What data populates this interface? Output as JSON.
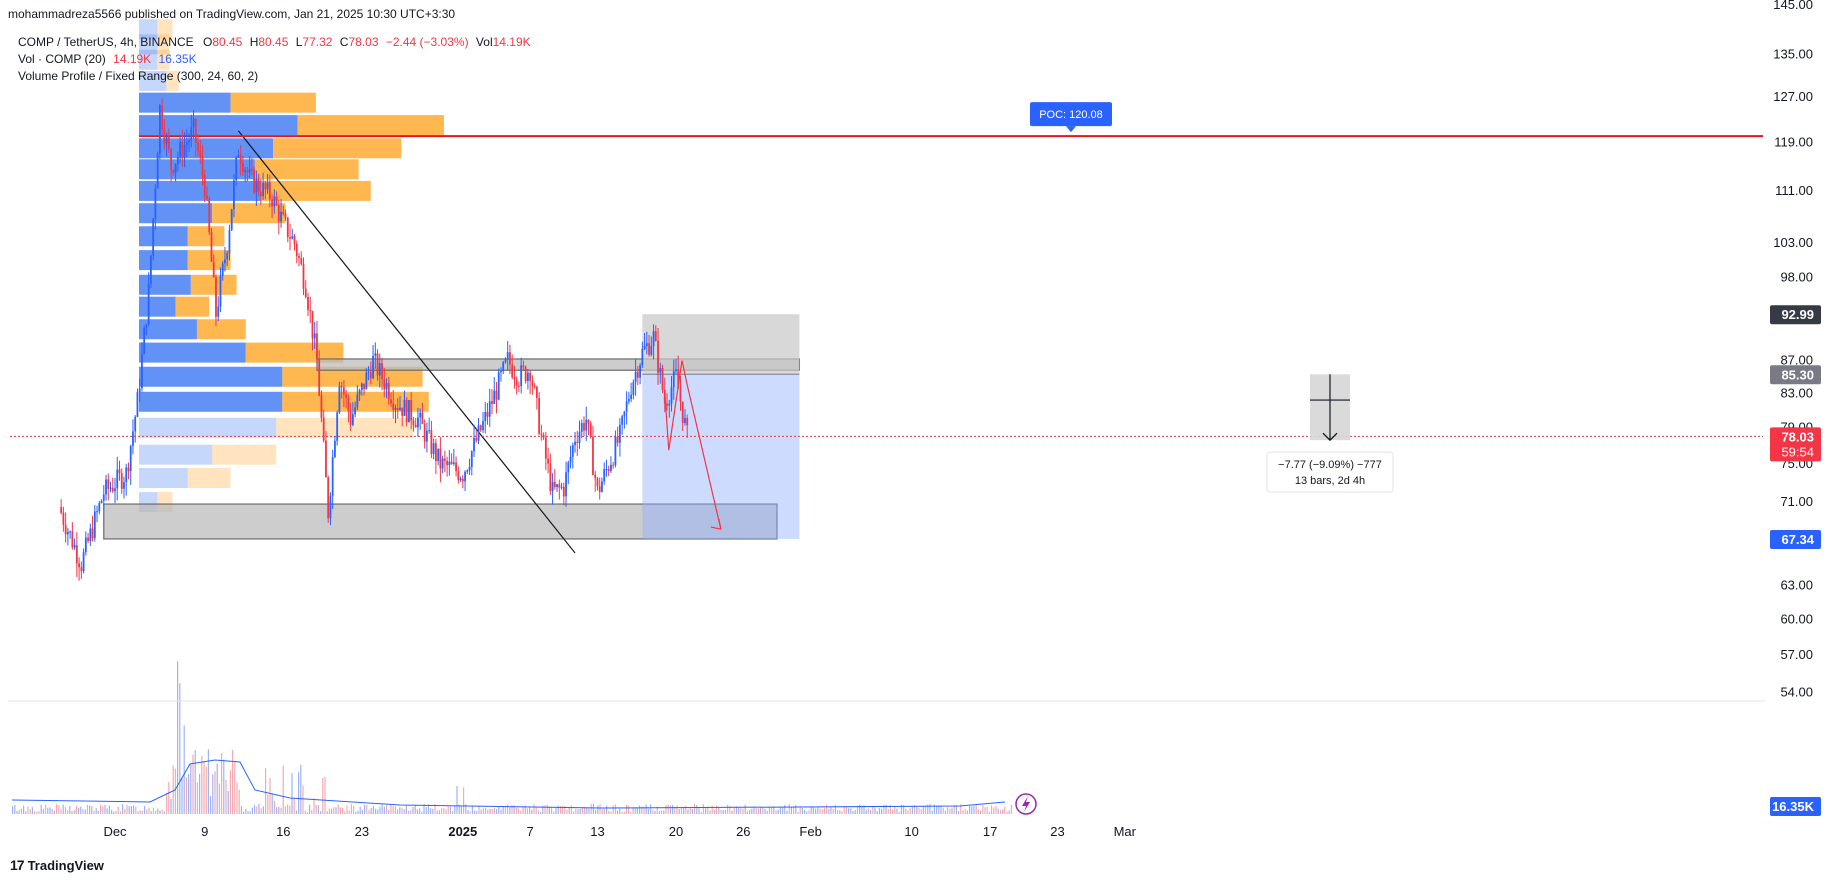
{
  "header": {
    "published": "mohammadreza5566 published on TradingView.com, Jan 21, 2025 10:30 UTC+3:30"
  },
  "legend": {
    "symbol": "COMP / TetherUS, 4h, BINANCE",
    "o_label": "O",
    "o": "80.45",
    "h_label": "H",
    "h": "80.45",
    "l_label": "L",
    "l": "77.32",
    "c_label": "C",
    "c": "78.03",
    "change": "−2.44 (−3.03%)",
    "vol_label": "Vol",
    "vol": "14.19K",
    "volume_indicator": "Vol · COMP (20)",
    "vol_val1": "14.19K",
    "vol_val2": "16.35K",
    "volume_profile": "Volume Profile / Fixed Range (300, 24, 60, 2)"
  },
  "brand": {
    "name": "TradingView",
    "logo": "17"
  },
  "colors": {
    "up": "#2962ff",
    "down": "#f23645",
    "poc": "#e3161e",
    "profile_up": "#5b8cf5",
    "profile_down": "#ffb347",
    "zone": "#b8b8b8",
    "projection": "#8fb0ff"
  },
  "chart_data": {
    "type": "candlestick",
    "timeframe": "4h",
    "y_axis_ticks": [
      "145.00",
      "135.00",
      "127.00",
      "119.00",
      "111.00",
      "103.00",
      "98.00",
      "92.99",
      "87.00",
      "85.30",
      "83.00",
      "79.00",
      "78.03",
      "75.00",
      "71.00",
      "67.34",
      "63.00",
      "60.00",
      "57.00",
      "54.00"
    ],
    "y_axis_scale": "log",
    "x_axis_ticks": [
      "Dec",
      "9",
      "16",
      "23",
      "2025",
      "7",
      "13",
      "20",
      "26",
      "Feb",
      "10",
      "17",
      "23",
      "Mar"
    ],
    "price_labels": [
      {
        "label": "92.99",
        "value": 92.99
      },
      {
        "label": "85.30",
        "value": 85.3
      },
      {
        "label": "78.03",
        "value": 78.03,
        "countdown": "59:54"
      },
      {
        "label": "67.34",
        "value": 67.34
      },
      {
        "label": "16.35K",
        "value": "volume"
      }
    ],
    "poc": {
      "label": "POC: 120.08",
      "value": 120.08
    },
    "measure": {
      "line1": "−7.77 (−9.09%) −777",
      "line2": "13 bars, 2d 4h"
    },
    "price_path": [
      {
        "date": "2024-11-26",
        "price": 70.5
      },
      {
        "date": "2024-11-28",
        "price": 65.0
      },
      {
        "date": "2024-11-30",
        "price": 72.0
      },
      {
        "date": "2024-12-02",
        "price": 74.0
      },
      {
        "date": "2024-12-03",
        "price": 82.0
      },
      {
        "date": "2024-12-04",
        "price": 96.0
      },
      {
        "date": "2024-12-05",
        "price": 125.0
      },
      {
        "date": "2024-12-06",
        "price": 115.0
      },
      {
        "date": "2024-12-07",
        "price": 118.0
      },
      {
        "date": "2024-12-08",
        "price": 121.0
      },
      {
        "date": "2024-12-09",
        "price": 112.0
      },
      {
        "date": "2024-12-10",
        "price": 93.0
      },
      {
        "date": "2024-12-11",
        "price": 103.0
      },
      {
        "date": "2024-12-12",
        "price": 118.0
      },
      {
        "date": "2024-12-13",
        "price": 113.0
      },
      {
        "date": "2024-12-15",
        "price": 110.0
      },
      {
        "date": "2024-12-16",
        "price": 106.0
      },
      {
        "date": "2024-12-17",
        "price": 103.0
      },
      {
        "date": "2024-12-18",
        "price": 97.0
      },
      {
        "date": "2024-12-19",
        "price": 87.0
      },
      {
        "date": "2024-12-20",
        "price": 70.0
      },
      {
        "date": "2024-12-21",
        "price": 85.0
      },
      {
        "date": "2024-12-22",
        "price": 80.0
      },
      {
        "date": "2024-12-24",
        "price": 87.0
      },
      {
        "date": "2024-12-26",
        "price": 82.0
      },
      {
        "date": "2024-12-28",
        "price": 80.0
      },
      {
        "date": "2024-12-30",
        "price": 75.0
      },
      {
        "date": "2025-01-01",
        "price": 74.0
      },
      {
        "date": "2025-01-03",
        "price": 80.0
      },
      {
        "date": "2025-01-05",
        "price": 87.0
      },
      {
        "date": "2025-01-06",
        "price": 85.0
      },
      {
        "date": "2025-01-07",
        "price": 86.0
      },
      {
        "date": "2025-01-08",
        "price": 78.0
      },
      {
        "date": "2025-01-09",
        "price": 72.0
      },
      {
        "date": "2025-01-10",
        "price": 72.5
      },
      {
        "date": "2025-01-11",
        "price": 78.0
      },
      {
        "date": "2025-01-12",
        "price": 80.0
      },
      {
        "date": "2025-01-13",
        "price": 72.0
      },
      {
        "date": "2025-01-15",
        "price": 78.0
      },
      {
        "date": "2025-01-16",
        "price": 84.0
      },
      {
        "date": "2025-01-17",
        "price": 88.0
      },
      {
        "date": "2025-01-18",
        "price": 90.0
      },
      {
        "date": "2025-01-19",
        "price": 82.0
      },
      {
        "date": "2025-01-20",
        "price": 85.0
      },
      {
        "date": "2025-01-21",
        "price": 78.03
      }
    ],
    "volume_profile_rows": [
      {
        "price": 140.0,
        "up": 6,
        "down": 5
      },
      {
        "price": 137.0,
        "up": 6,
        "down": 4
      },
      {
        "price": 134.0,
        "up": 6,
        "down": 4
      },
      {
        "price": 130.0,
        "up": 9,
        "down": 4
      },
      {
        "price": 126.0,
        "up": 30,
        "down": 28
      },
      {
        "price": 122.0,
        "up": 52,
        "down": 48
      },
      {
        "price": 118.0,
        "up": 44,
        "down": 42
      },
      {
        "price": 114.5,
        "up": 38,
        "down": 34
      },
      {
        "price": 111.0,
        "up": 40,
        "down": 36
      },
      {
        "price": 107.5,
        "up": 24,
        "down": 24
      },
      {
        "price": 104.0,
        "up": 16,
        "down": 12
      },
      {
        "price": 100.5,
        "up": 16,
        "down": 14
      },
      {
        "price": 97.0,
        "up": 17,
        "down": 15
      },
      {
        "price": 94.0,
        "up": 12,
        "down": 11
      },
      {
        "price": 91.0,
        "up": 19,
        "down": 16
      },
      {
        "price": 88.0,
        "up": 35,
        "down": 32
      },
      {
        "price": 85.0,
        "up": 47,
        "down": 46
      },
      {
        "price": 82.0,
        "up": 47,
        "down": 48
      },
      {
        "price": 79.0,
        "up": 45,
        "down": 45
      },
      {
        "price": 76.0,
        "up": 24,
        "down": 21
      },
      {
        "price": 73.5,
        "up": 16,
        "down": 14
      },
      {
        "price": 71.0,
        "up": 6,
        "down": 5
      }
    ],
    "zones": [
      {
        "name": "resistance-zone",
        "price_low": 85.8,
        "price_high": 87.2,
        "date_start": "2024-12-19",
        "date_end": "2025-01-31"
      },
      {
        "name": "support-zone",
        "price_low": 67.34,
        "price_high": 70.8,
        "date_start": "2024-11-30",
        "date_end": "2025-01-29"
      }
    ],
    "trendline": {
      "start": {
        "date": "2024-12-12",
        "price": 121.0
      },
      "end": {
        "date": "2025-01-11",
        "price": 66.0
      }
    },
    "short_position": {
      "date_start": "2025-01-17",
      "date_end": "2025-01-31",
      "entry": 85.3,
      "stop": 92.99,
      "target": 67.34
    },
    "forecast_arrow": {
      "start": {
        "date": "2025-01-21",
        "price": 84.0
      },
      "end": {
        "date": "2025-01-24",
        "price": 68.3
      }
    }
  }
}
